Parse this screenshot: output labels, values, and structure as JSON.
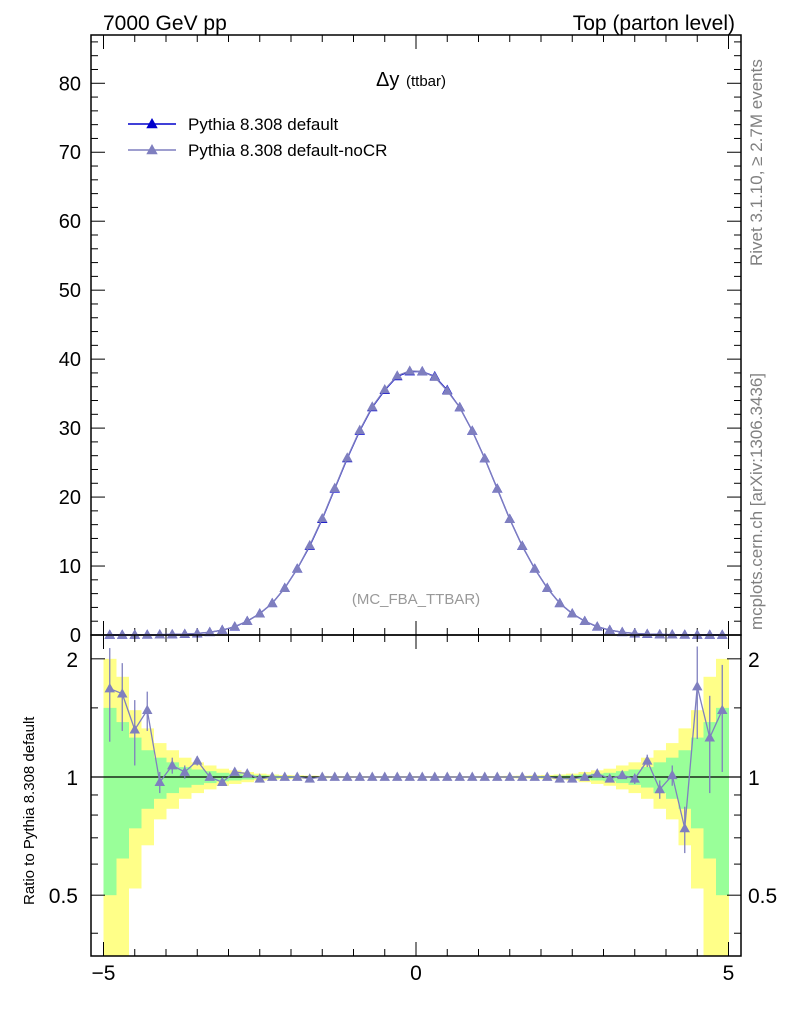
{
  "header": {
    "left": "7000 GeV pp",
    "right": "Top (parton level)"
  },
  "side_labels": {
    "rivet": "Rivet 3.1.10, ≥ 2.7M events",
    "mcplots": "mcplots.cern.ch [arXiv:1306.3436]"
  },
  "colors": {
    "default": "#0000cc",
    "noCR": "#7f7fbf",
    "band_yellow": "#ffff88",
    "band_green": "#99ff99",
    "axis": "#000000"
  },
  "chart_data": [
    {
      "type": "line",
      "title": "Δy",
      "title_suffix": "(ttbar)",
      "analysis_label": "(MC_FBA_TTBAR)",
      "xlim": [
        -5.2,
        5.2
      ],
      "ylim": [
        0,
        87
      ],
      "yticks": [
        0,
        10,
        20,
        30,
        40,
        50,
        60,
        70,
        80
      ],
      "legend_position": "top-left",
      "x": [
        -4.9,
        -4.7,
        -4.5,
        -4.3,
        -4.1,
        -3.9,
        -3.7,
        -3.5,
        -3.3,
        -3.1,
        -2.9,
        -2.7,
        -2.5,
        -2.3,
        -2.1,
        -1.9,
        -1.7,
        -1.5,
        -1.3,
        -1.1,
        -0.9,
        -0.7,
        -0.5,
        -0.3,
        -0.1,
        0.1,
        0.3,
        0.5,
        0.7,
        0.9,
        1.1,
        1.3,
        1.5,
        1.7,
        1.9,
        2.1,
        2.3,
        2.5,
        2.7,
        2.9,
        3.1,
        3.3,
        3.5,
        3.7,
        3.9,
        4.1,
        4.3,
        4.5,
        4.7,
        4.9
      ],
      "series": [
        {
          "name": "Pythia 8.308 default",
          "marker": "triangle",
          "values": [
            0.01,
            0.01,
            0.02,
            0.03,
            0.05,
            0.08,
            0.13,
            0.22,
            0.4,
            0.7,
            1.2,
            2.0,
            3.1,
            4.6,
            6.8,
            9.6,
            12.9,
            16.8,
            21.2,
            25.6,
            29.6,
            33.0,
            35.5,
            37.5,
            38.2,
            38.2,
            37.5,
            35.5,
            33.0,
            29.6,
            25.6,
            21.2,
            16.8,
            12.9,
            9.6,
            6.8,
            4.6,
            3.1,
            2.0,
            1.2,
            0.7,
            0.4,
            0.22,
            0.13,
            0.08,
            0.05,
            0.03,
            0.02,
            0.01,
            0.01
          ]
        },
        {
          "name": "Pythia 8.308 default-noCR",
          "marker": "triangle",
          "values": [
            0.02,
            0.02,
            0.03,
            0.04,
            0.05,
            0.09,
            0.14,
            0.23,
            0.41,
            0.71,
            1.22,
            2.0,
            3.1,
            4.6,
            6.8,
            9.6,
            13.0,
            16.9,
            21.3,
            25.7,
            29.7,
            33.1,
            35.6,
            37.6,
            38.3,
            38.2,
            37.4,
            35.4,
            33.0,
            29.6,
            25.6,
            21.2,
            16.8,
            12.9,
            9.6,
            6.8,
            4.6,
            3.1,
            2.0,
            1.21,
            0.71,
            0.41,
            0.23,
            0.14,
            0.07,
            0.05,
            0.03,
            0.03,
            0.01,
            0.01
          ]
        }
      ]
    },
    {
      "type": "line",
      "ylabel": "Ratio to Pythia 8.308 default",
      "xlim": [
        -5.2,
        5.2
      ],
      "ylim": [
        0.35,
        2.3
      ],
      "yscale": "log",
      "yticks": [
        0.5,
        1,
        2
      ],
      "xticks": [
        -5,
        0,
        5
      ],
      "xticklabels": [
        "−5",
        "0",
        "5"
      ],
      "bands": {
        "yellow_half_width": [
          1.0,
          0.8,
          0.48,
          0.33,
          0.22,
          0.17,
          0.12,
          0.09,
          0.07,
          0.05,
          0.04,
          0.03,
          0.02,
          0.015,
          0.012,
          0.01,
          0.008,
          0.007,
          0.006,
          0.006,
          0.005,
          0.005,
          0.005,
          0.005,
          0.005,
          0.005,
          0.005,
          0.005,
          0.005,
          0.005,
          0.006,
          0.006,
          0.007,
          0.008,
          0.01,
          0.012,
          0.015,
          0.02,
          0.03,
          0.04,
          0.05,
          0.07,
          0.09,
          0.12,
          0.17,
          0.22,
          0.33,
          0.48,
          0.8,
          1.0
        ],
        "green_half_width": [
          0.5,
          0.38,
          0.26,
          0.17,
          0.12,
          0.09,
          0.06,
          0.045,
          0.035,
          0.025,
          0.02,
          0.015,
          0.01,
          0.008,
          0.006,
          0.005,
          0.004,
          0.0035,
          0.003,
          0.003,
          0.0025,
          0.0025,
          0.0025,
          0.0025,
          0.0025,
          0.0025,
          0.0025,
          0.0025,
          0.0025,
          0.0025,
          0.003,
          0.003,
          0.0035,
          0.004,
          0.005,
          0.006,
          0.008,
          0.01,
          0.015,
          0.02,
          0.025,
          0.035,
          0.045,
          0.06,
          0.09,
          0.12,
          0.17,
          0.26,
          0.38,
          0.5
        ]
      },
      "series": [
        {
          "name": "Pythia 8.308 default-noCR",
          "marker": "triangle",
          "values": [
            1.68,
            1.63,
            1.32,
            1.48,
            0.97,
            1.07,
            1.03,
            1.1,
            1.0,
            0.97,
            1.03,
            1.02,
            0.99,
            1.0,
            1.0,
            1.0,
            0.99,
            1.0,
            1.0,
            1.0,
            1.0,
            1.0,
            1.0,
            1.0,
            1.0,
            1.0,
            1.0,
            1.0,
            1.0,
            1.0,
            1.0,
            1.0,
            1.0,
            1.0,
            1.0,
            1.0,
            0.99,
            0.99,
            1.0,
            1.02,
            0.99,
            1.01,
            0.99,
            1.1,
            0.93,
            1.01,
            0.74,
            1.7,
            1.26,
            1.48
          ],
          "errors": [
            0.45,
            0.32,
            0.25,
            0.17,
            0.06,
            0.05,
            0.04,
            0.03,
            0.02,
            0.02,
            0.015,
            0.01,
            0.008,
            0.006,
            0.005,
            0.004,
            0.004,
            0.003,
            0.003,
            0.003,
            0.003,
            0.003,
            0.003,
            0.003,
            0.003,
            0.003,
            0.003,
            0.003,
            0.003,
            0.003,
            0.003,
            0.003,
            0.003,
            0.004,
            0.004,
            0.005,
            0.006,
            0.008,
            0.01,
            0.015,
            0.02,
            0.02,
            0.03,
            0.04,
            0.05,
            0.06,
            0.1,
            0.45,
            0.35,
            0.45
          ]
        }
      ]
    }
  ]
}
